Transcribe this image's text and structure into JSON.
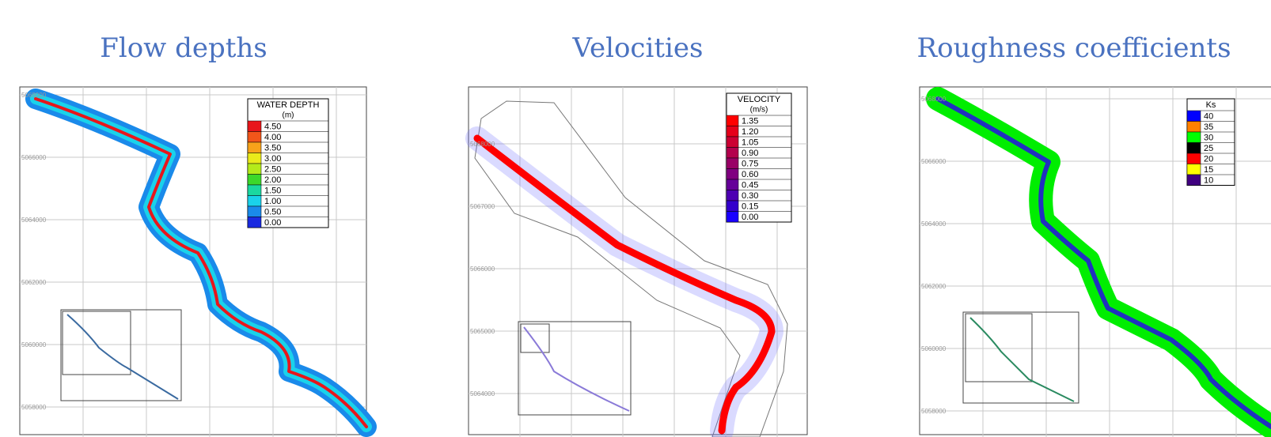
{
  "panels": [
    {
      "title": "Flow depths",
      "axis_labels": [
        "5068000",
        "5066000",
        "5064000",
        "5062000",
        "5060000",
        "5058000"
      ],
      "legend": {
        "title": "WATER DEPTH",
        "unit": "(m)",
        "entries": [
          {
            "label": "4.50",
            "color": "#e8161b"
          },
          {
            "label": "4.00",
            "color": "#f2561a"
          },
          {
            "label": "3.50",
            "color": "#f7a21a"
          },
          {
            "label": "3.00",
            "color": "#eaea1a"
          },
          {
            "label": "2.50",
            "color": "#b4ea1a"
          },
          {
            "label": "2.00",
            "color": "#3cd82a"
          },
          {
            "label": "1.50",
            "color": "#1ad8a0"
          },
          {
            "label": "1.00",
            "color": "#1ad2ea"
          },
          {
            "label": "0.50",
            "color": "#1a8aea"
          },
          {
            "label": "0.00",
            "color": "#1a2ae0"
          }
        ]
      }
    },
    {
      "title": "Velocities",
      "axis_labels": [
        "5068000",
        "5067000",
        "5066000",
        "5065000",
        "5064000"
      ],
      "legend": {
        "title": "VELOCITY",
        "unit": "(m/s)",
        "entries": [
          {
            "label": "1.35",
            "color": "#ff0000"
          },
          {
            "label": "1.20",
            "color": "#e6001a"
          },
          {
            "label": "1.05",
            "color": "#cc0033"
          },
          {
            "label": "0.90",
            "color": "#b3004d"
          },
          {
            "label": "0.75",
            "color": "#990066"
          },
          {
            "label": "0.60",
            "color": "#800080"
          },
          {
            "label": "0.45",
            "color": "#660099"
          },
          {
            "label": "0.30",
            "color": "#4d00b3"
          },
          {
            "label": "0.15",
            "color": "#3300cc"
          },
          {
            "label": "0.00",
            "color": "#1a00ff"
          }
        ]
      }
    },
    {
      "title": "Roughness coefficients",
      "axis_labels": [
        "5068000",
        "5066000",
        "5064000",
        "5062000",
        "5060000",
        "5058000"
      ],
      "legend": {
        "title": "Ks",
        "entries": [
          {
            "label": "40",
            "color": "#0000ff"
          },
          {
            "label": "35",
            "color": "#ff8000"
          },
          {
            "label": "30",
            "color": "#00ff00"
          },
          {
            "label": "25",
            "color": "#000000"
          },
          {
            "label": "20",
            "color": "#ff0000"
          },
          {
            "label": "15",
            "color": "#ffff00"
          },
          {
            "label": "10",
            "color": "#400080"
          }
        ]
      }
    }
  ]
}
